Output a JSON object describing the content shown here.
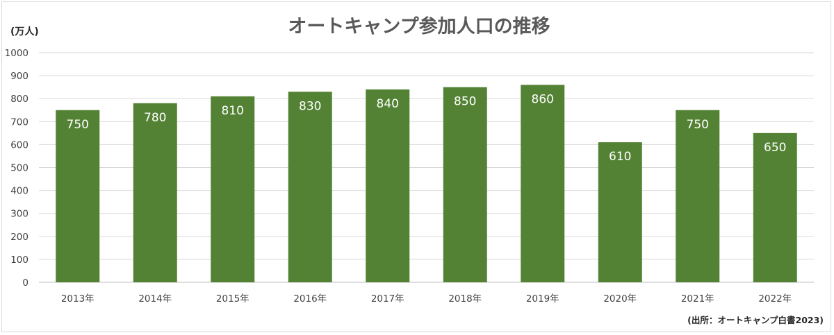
{
  "chart_data": {
    "type": "bar",
    "title": "オートキャンプ参加人口の推移",
    "unit_label": "(万人)",
    "source_note": "(出所：オートキャンプ白書2023)",
    "categories": [
      "2013年",
      "2014年",
      "2015年",
      "2016年",
      "2017年",
      "2018年",
      "2019年",
      "2020年",
      "2021年",
      "2022年"
    ],
    "values": [
      750,
      780,
      810,
      830,
      840,
      850,
      860,
      610,
      750,
      650
    ],
    "y_ticks": [
      "0",
      "100",
      "200",
      "300",
      "400",
      "500",
      "600",
      "700",
      "800",
      "900",
      "1000"
    ],
    "ylim": [
      0,
      1000
    ],
    "y_step": 100,
    "grid": true,
    "data_labels": true,
    "bar_color": "#548235",
    "xlabel": "",
    "ylabel": ""
  }
}
